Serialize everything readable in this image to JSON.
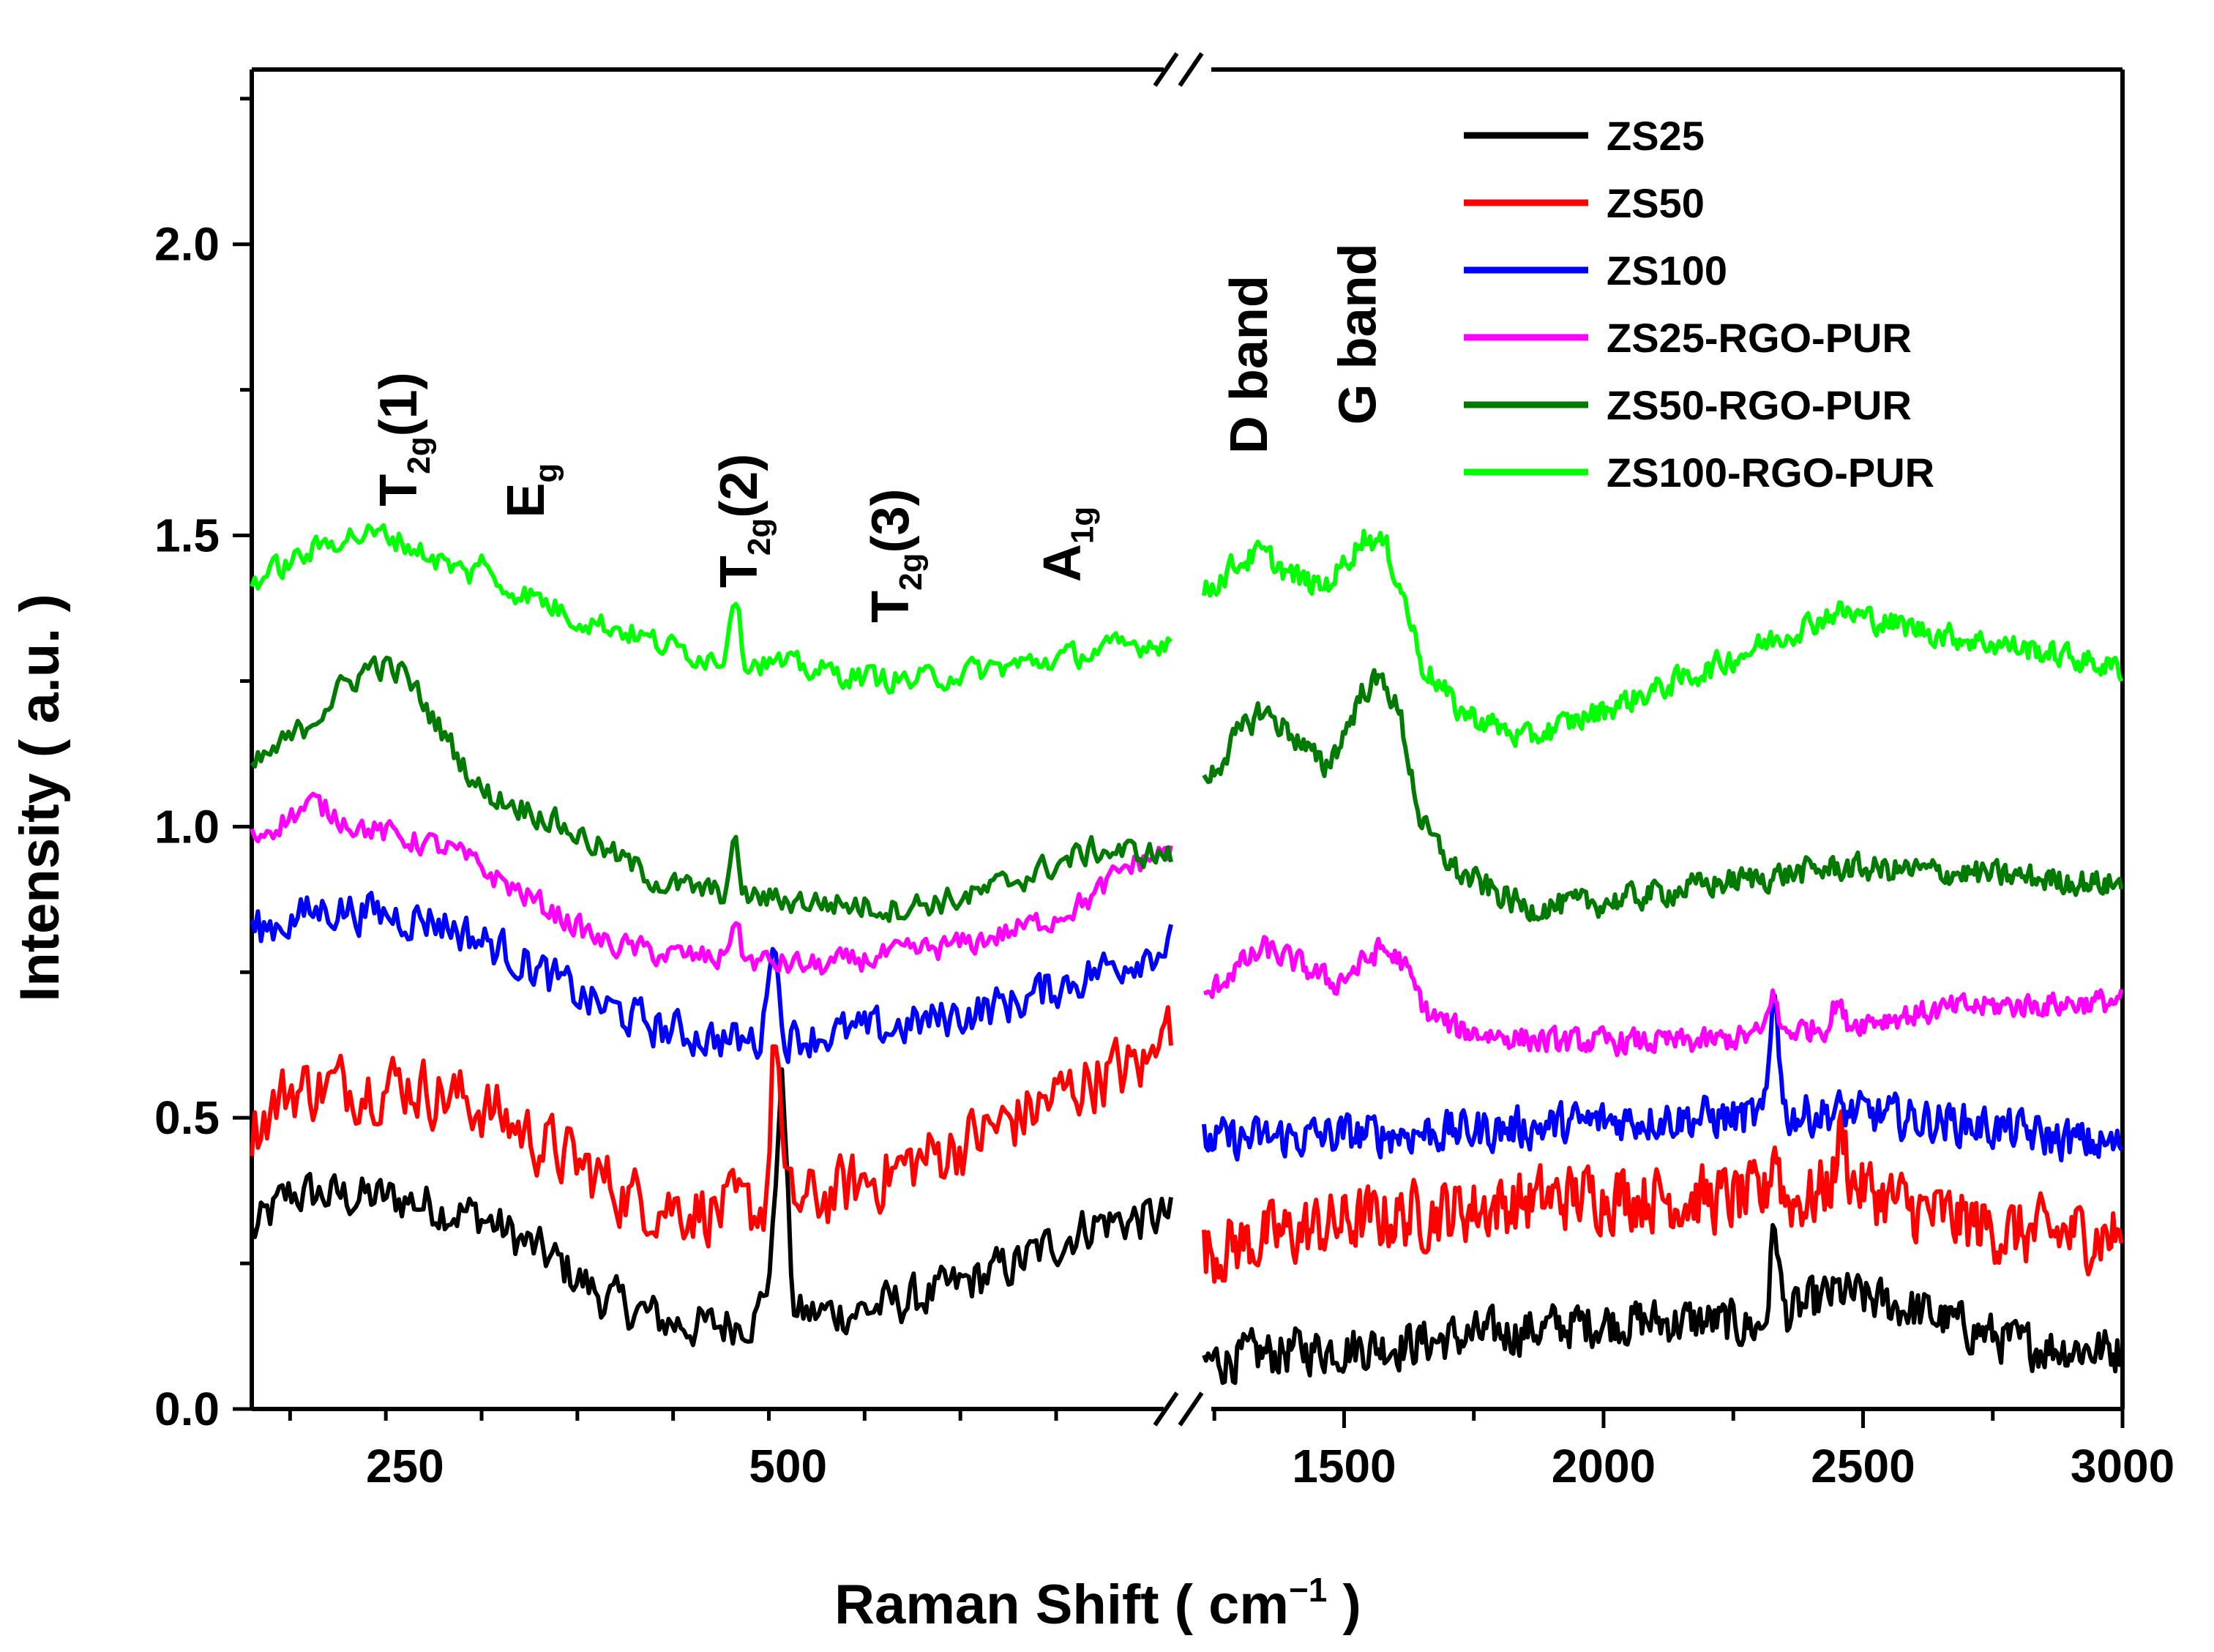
{
  "chart_data": {
    "type": "line",
    "title": "",
    "xlabel": "Raman Shift ( cm",
    "xlabel_sup": "−1",
    "xlabel_close": " )",
    "ylabel": "Intensity ( a.u. )",
    "broken_x_axis": true,
    "segments": [
      {
        "xlim": [
          150,
          750
        ],
        "ticks": [
          250,
          500
        ],
        "tick_labels": [
          "250",
          "500"
        ]
      },
      {
        "xlim": [
          1230,
          3000
        ],
        "ticks": [
          1500,
          2000,
          2500,
          3000
        ],
        "tick_labels": [
          "1500",
          "2000",
          "2500",
          "3000"
        ]
      }
    ],
    "ylim": [
      0.0,
      2.3
    ],
    "yticks": [
      0.0,
      0.5,
      1.0,
      1.5,
      2.0
    ],
    "ytick_labels": [
      "0.0",
      "0.5",
      "1.0",
      "1.5",
      "2.0"
    ],
    "legend_position": "top-right",
    "series": [
      {
        "name": "ZS25",
        "color": "#000000",
        "noise": 0.055,
        "left": [
          [
            150,
            0.3
          ],
          [
            175,
            0.37
          ],
          [
            250,
            0.36
          ],
          [
            300,
            0.33
          ],
          [
            350,
            0.25
          ],
          [
            380,
            0.19
          ],
          [
            420,
            0.15
          ],
          [
            450,
            0.14
          ],
          [
            480,
            0.16
          ],
          [
            495,
            0.3
          ],
          [
            505,
            0.16
          ],
          [
            550,
            0.17
          ],
          [
            600,
            0.2
          ],
          [
            650,
            0.25
          ],
          [
            700,
            0.32
          ],
          [
            750,
            0.33
          ]
        ],
        "right": [
          [
            1230,
            0.08
          ],
          [
            1400,
            0.1
          ],
          [
            1600,
            0.11
          ],
          [
            1800,
            0.13
          ],
          [
            2000,
            0.15
          ],
          [
            2200,
            0.15
          ],
          [
            2300,
            0.14
          ],
          [
            2350,
            0.16
          ],
          [
            2450,
            0.2
          ],
          [
            2600,
            0.17
          ],
          [
            2800,
            0.11
          ],
          [
            3000,
            0.1
          ]
        ],
        "spikes": [
          [
            496,
            0.28
          ],
          [
            2330,
            0.16
          ]
        ]
      },
      {
        "name": "ZS50",
        "color": "#ff0000",
        "noise": 0.08,
        "left": [
          [
            150,
            0.48
          ],
          [
            175,
            0.55
          ],
          [
            250,
            0.56
          ],
          [
            300,
            0.52
          ],
          [
            350,
            0.44
          ],
          [
            400,
            0.36
          ],
          [
            450,
            0.34
          ],
          [
            480,
            0.34
          ],
          [
            520,
            0.36
          ],
          [
            560,
            0.4
          ],
          [
            600,
            0.44
          ],
          [
            650,
            0.5
          ],
          [
            700,
            0.57
          ],
          [
            750,
            0.6
          ]
        ],
        "right": [
          [
            1230,
            0.27
          ],
          [
            1500,
            0.32
          ],
          [
            1800,
            0.35
          ],
          [
            2000,
            0.37
          ],
          [
            2200,
            0.36
          ],
          [
            2400,
            0.36
          ],
          [
            2450,
            0.4
          ],
          [
            2600,
            0.34
          ],
          [
            2800,
            0.3
          ],
          [
            3000,
            0.3
          ]
        ],
        "spikes": [
          [
            492,
            0.3
          ],
          [
            745,
            0.12
          ],
          [
            2330,
            0.1
          ],
          [
            2460,
            0.08
          ]
        ]
      },
      {
        "name": "ZS100",
        "color": "#0000ff",
        "noise": 0.05,
        "left": [
          [
            150,
            0.82
          ],
          [
            200,
            0.86
          ],
          [
            270,
            0.84
          ],
          [
            320,
            0.78
          ],
          [
            370,
            0.7
          ],
          [
            420,
            0.65
          ],
          [
            470,
            0.63
          ],
          [
            510,
            0.64
          ],
          [
            560,
            0.65
          ],
          [
            600,
            0.67
          ],
          [
            650,
            0.7
          ],
          [
            700,
            0.75
          ],
          [
            750,
            0.8
          ]
        ],
        "right": [
          [
            1230,
            0.46
          ],
          [
            1500,
            0.47
          ],
          [
            1800,
            0.48
          ],
          [
            2100,
            0.5
          ],
          [
            2300,
            0.5
          ],
          [
            2450,
            0.51
          ],
          [
            2700,
            0.49
          ],
          [
            2900,
            0.46
          ],
          [
            3000,
            0.45
          ]
        ],
        "spikes": [
          [
            490,
            0.19
          ],
          [
            2330,
            0.22
          ]
        ]
      },
      {
        "name": "ZS25-RGO-PUR",
        "color": "#ff00ff",
        "noise": 0.03,
        "left": [
          [
            150,
            0.98
          ],
          [
            190,
            1.04
          ],
          [
            220,
            1.0
          ],
          [
            280,
            0.96
          ],
          [
            330,
            0.88
          ],
          [
            380,
            0.8
          ],
          [
            420,
            0.78
          ],
          [
            470,
            0.77
          ],
          [
            520,
            0.76
          ],
          [
            570,
            0.78
          ],
          [
            620,
            0.8
          ],
          [
            670,
            0.84
          ],
          [
            700,
            0.88
          ],
          [
            720,
            0.93
          ],
          [
            750,
            0.96
          ]
        ],
        "right": [
          [
            1230,
            0.7
          ],
          [
            1280,
            0.75
          ],
          [
            1350,
            0.79
          ],
          [
            1420,
            0.76
          ],
          [
            1480,
            0.73
          ],
          [
            1530,
            0.76
          ],
          [
            1570,
            0.79
          ],
          [
            1610,
            0.77
          ],
          [
            1660,
            0.68
          ],
          [
            1720,
            0.65
          ],
          [
            1900,
            0.63
          ],
          [
            2200,
            0.63
          ],
          [
            2450,
            0.66
          ],
          [
            2700,
            0.69
          ],
          [
            3000,
            0.7
          ]
        ],
        "spikes": [
          [
            465,
            0.07
          ],
          [
            2325,
            0.07
          ],
          [
            2450,
            0.04
          ]
        ]
      },
      {
        "name": "ZS50-RGO-PUR",
        "color": "#007a00",
        "noise": 0.032,
        "left": [
          [
            150,
            1.1
          ],
          [
            180,
            1.16
          ],
          [
            210,
            1.24
          ],
          [
            230,
            1.28
          ],
          [
            250,
            1.26
          ],
          [
            270,
            1.18
          ],
          [
            300,
            1.06
          ],
          [
            340,
            1.02
          ],
          [
            380,
            0.96
          ],
          [
            420,
            0.9
          ],
          [
            470,
            0.88
          ],
          [
            520,
            0.87
          ],
          [
            570,
            0.86
          ],
          [
            620,
            0.88
          ],
          [
            670,
            0.93
          ],
          [
            700,
            0.96
          ],
          [
            750,
            0.95
          ]
        ],
        "right": [
          [
            1230,
            1.07
          ],
          [
            1290,
            1.15
          ],
          [
            1340,
            1.2
          ],
          [
            1400,
            1.16
          ],
          [
            1460,
            1.1
          ],
          [
            1490,
            1.14
          ],
          [
            1540,
            1.24
          ],
          [
            1580,
            1.25
          ],
          [
            1610,
            1.18
          ],
          [
            1650,
            1.0
          ],
          [
            1720,
            0.92
          ],
          [
            1850,
            0.86
          ],
          [
            2000,
            0.87
          ],
          [
            2200,
            0.9
          ],
          [
            2450,
            0.93
          ],
          [
            2700,
            0.92
          ],
          [
            3000,
            0.9
          ]
        ],
        "spikes": [
          [
            465,
            0.08
          ]
        ]
      },
      {
        "name": "ZS100-RGO-PUR",
        "color": "#00ff00",
        "noise": 0.03,
        "left": [
          [
            150,
            1.42
          ],
          [
            180,
            1.46
          ],
          [
            210,
            1.5
          ],
          [
            240,
            1.5
          ],
          [
            270,
            1.46
          ],
          [
            300,
            1.42
          ],
          [
            330,
            1.4
          ],
          [
            360,
            1.36
          ],
          [
            390,
            1.34
          ],
          [
            420,
            1.31
          ],
          [
            450,
            1.29
          ],
          [
            490,
            1.28
          ],
          [
            540,
            1.26
          ],
          [
            580,
            1.25
          ],
          [
            630,
            1.27
          ],
          [
            680,
            1.29
          ],
          [
            720,
            1.31
          ],
          [
            750,
            1.32
          ]
        ],
        "right": [
          [
            1230,
            1.4
          ],
          [
            1290,
            1.45
          ],
          [
            1340,
            1.47
          ],
          [
            1400,
            1.43
          ],
          [
            1460,
            1.41
          ],
          [
            1490,
            1.44
          ],
          [
            1540,
            1.5
          ],
          [
            1580,
            1.48
          ],
          [
            1610,
            1.41
          ],
          [
            1650,
            1.28
          ],
          [
            1720,
            1.2
          ],
          [
            1850,
            1.15
          ],
          [
            2000,
            1.2
          ],
          [
            2200,
            1.27
          ],
          [
            2450,
            1.37
          ],
          [
            2650,
            1.33
          ],
          [
            2850,
            1.3
          ],
          [
            3000,
            1.27
          ]
        ],
        "spikes": [
          [
            465,
            0.12
          ],
          [
            300,
            0.05
          ]
        ]
      }
    ],
    "annotations": [
      {
        "base": "T",
        "sub": "2g",
        "tail": "(1)",
        "rotated": true,
        "x": 247,
        "y": 1.55
      },
      {
        "base": "E",
        "sub": "g",
        "tail": "",
        "rotated": true,
        "x": 330,
        "y": 1.53
      },
      {
        "base": "T",
        "sub": "2g",
        "tail": "(2)",
        "rotated": true,
        "x": 469,
        "y": 1.41
      },
      {
        "base": "T",
        "sub": "2g",
        "tail": "(3)",
        "rotated": true,
        "x": 568,
        "y": 1.35
      },
      {
        "base": "A",
        "sub": "1g",
        "tail": "",
        "rotated": true,
        "x": 680,
        "y": 1.42
      },
      {
        "base": "D band",
        "sub": "",
        "tail": "",
        "rotated": true,
        "x": 1320,
        "y": 1.64
      },
      {
        "base": "G band",
        "sub": "",
        "tail": "",
        "rotated": true,
        "x": 1530,
        "y": 1.69
      }
    ]
  }
}
